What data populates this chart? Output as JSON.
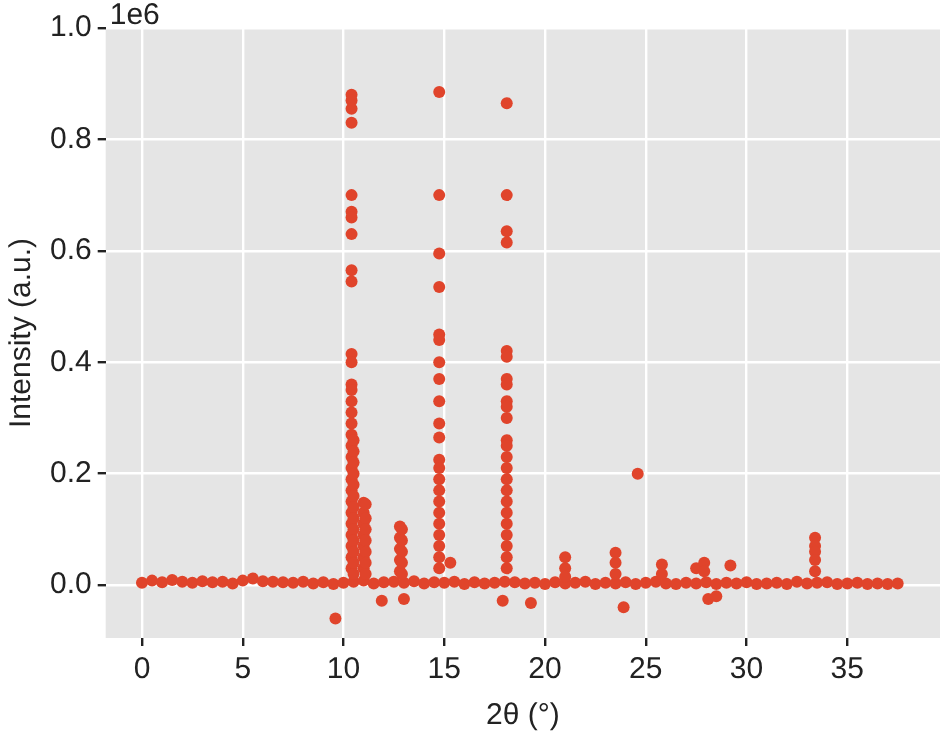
{
  "chart_data": {
    "type": "scatter",
    "xlabel": "2θ (°)",
    "ylabel": "Intensity (a.u.)",
    "annotations": [
      "1e6"
    ],
    "color": "#e0442b",
    "marker": "circle",
    "grid": true,
    "xlim": [
      -1.8,
      39.6
    ],
    "xticks": [
      0,
      5,
      10,
      15,
      20,
      25,
      30,
      35
    ],
    "ylim": [
      -0.095,
      1.0
    ],
    "yticks": [
      {
        "value": 0,
        "label": "0.0"
      },
      {
        "value": 0.2,
        "label": "0.2"
      },
      {
        "value": 0.4,
        "label": "0.4"
      },
      {
        "value": 0.6,
        "label": "0.6"
      },
      {
        "value": 0.8,
        "label": "0.8"
      },
      {
        "value": 1.0,
        "label": "1.0"
      }
    ],
    "x": [
      0,
      0.5,
      1,
      1.5,
      2,
      2.5,
      3,
      3.5,
      4,
      4.5,
      5,
      5.5,
      6,
      6.5,
      7,
      7.5,
      8,
      8.5,
      9,
      9.5,
      10,
      10.5,
      11,
      11.5,
      12,
      12.5,
      13,
      13.5,
      14,
      14.5,
      15,
      15.5,
      16,
      16.5,
      17,
      17.5,
      18,
      18.5,
      19,
      19.5,
      20,
      20.5,
      21,
      21.5,
      22,
      22.5,
      23,
      23.5,
      24,
      24.5,
      25,
      25.5,
      26,
      26.5,
      27,
      27.5,
      28,
      28.5,
      29,
      29.5,
      30,
      30.5,
      31,
      31.5,
      32,
      32.5,
      33,
      33.5,
      34,
      34.5,
      35,
      35.5,
      36,
      36.5,
      37,
      37.5,
      10.4,
      10.4,
      10.4,
      10.4,
      10.4,
      10.4,
      10.4,
      10.4,
      10.4,
      10.4,
      10.4,
      10.4,
      10.4,
      10.4,
      10.4,
      10.4,
      10.4,
      10.4,
      10.4,
      10.4,
      10.4,
      10.4,
      10.4,
      10.4,
      10.4,
      10.4,
      10.4,
      10.4,
      10.4,
      10.4,
      10.5,
      10.5,
      10.5,
      10.5,
      10.5,
      10.5,
      10.5,
      10.5,
      10.5,
      10.5,
      10.5,
      10.5,
      10.5,
      11.0,
      11.0,
      11.0,
      11.0,
      11.0,
      11.0,
      11.0,
      11.1,
      11.1,
      11.1,
      11.1,
      11.1,
      11.1,
      11.1,
      12.8,
      12.8,
      12.8,
      12.8,
      12.8,
      12.9,
      12.9,
      12.9,
      12.9,
      12.9,
      14.75,
      14.75,
      14.75,
      14.75,
      14.75,
      14.75,
      14.75,
      14.75,
      14.75,
      14.75,
      14.75,
      14.75,
      14.75,
      14.75,
      14.75,
      14.75,
      14.75,
      14.75,
      14.75,
      14.75,
      14.75,
      14.75,
      15.3,
      18.1,
      18.1,
      18.1,
      18.1,
      18.1,
      18.1,
      18.1,
      18.1,
      18.1,
      18.1,
      18.1,
      18.1,
      18.1,
      18.1,
      18.1,
      18.1,
      18.1,
      18.1,
      18.1,
      18.1,
      18.1,
      18.1,
      18.1,
      18.1,
      21.0,
      21.0,
      21.0,
      23.5,
      23.5,
      23.5,
      24.6,
      25.8,
      25.8,
      27.5,
      27.9,
      27.9,
      29.2,
      33.4,
      33.4,
      33.4,
      33.4,
      33.4,
      9.6,
      11.9,
      13.0,
      17.9,
      19.3,
      23.9,
      28.1,
      28.5
    ],
    "values": [
      0.004,
      0.008,
      0.005,
      0.009,
      0.006,
      0.004,
      0.007,
      0.005,
      0.006,
      0.003,
      0.008,
      0.012,
      0.007,
      0.006,
      0.005,
      0.004,
      0.006,
      0.003,
      0.005,
      0.002,
      0.004,
      0.006,
      0.008,
      0.003,
      0.005,
      0.006,
      0.004,
      0.007,
      0.003,
      0.005,
      0.004,
      0.006,
      0.002,
      0.005,
      0.003,
      0.004,
      0.006,
      0.005,
      0.003,
      0.004,
      0.002,
      0.005,
      0.003,
      0.004,
      0.006,
      0.002,
      0.004,
      0.003,
      0.005,
      0.002,
      0.004,
      0.006,
      0.003,
      0.002,
      0.004,
      0.003,
      0.005,
      0.002,
      0.004,
      0.003,
      0.005,
      0.002,
      0.003,
      0.004,
      0.002,
      0.006,
      0.003,
      0.004,
      0.005,
      0.002,
      0.003,
      0.004,
      0.002,
      0.003,
      0.002,
      0.003,
      0.88,
      0.87,
      0.855,
      0.83,
      0.7,
      0.67,
      0.66,
      0.63,
      0.565,
      0.545,
      0.415,
      0.4,
      0.36,
      0.35,
      0.33,
      0.31,
      0.29,
      0.27,
      0.25,
      0.23,
      0.21,
      0.19,
      0.17,
      0.15,
      0.13,
      0.11,
      0.09,
      0.07,
      0.05,
      0.03,
      0.26,
      0.24,
      0.22,
      0.2,
      0.18,
      0.16,
      0.14,
      0.12,
      0.1,
      0.08,
      0.06,
      0.04,
      0.02,
      0.148,
      0.13,
      0.11,
      0.09,
      0.07,
      0.05,
      0.03,
      0.145,
      0.12,
      0.1,
      0.08,
      0.06,
      0.04,
      0.02,
      0.105,
      0.085,
      0.065,
      0.045,
      0.025,
      0.1,
      0.08,
      0.06,
      0.04,
      0.02,
      0.885,
      0.7,
      0.595,
      0.535,
      0.45,
      0.44,
      0.4,
      0.37,
      0.33,
      0.29,
      0.265,
      0.225,
      0.21,
      0.19,
      0.17,
      0.15,
      0.13,
      0.11,
      0.09,
      0.07,
      0.05,
      0.03,
      0.04,
      0.865,
      0.7,
      0.635,
      0.615,
      0.42,
      0.41,
      0.37,
      0.36,
      0.33,
      0.32,
      0.3,
      0.26,
      0.25,
      0.23,
      0.21,
      0.19,
      0.17,
      0.15,
      0.13,
      0.11,
      0.09,
      0.07,
      0.05,
      0.03,
      0.05,
      0.03,
      0.015,
      0.058,
      0.04,
      0.02,
      0.2,
      0.037,
      0.02,
      0.03,
      0.04,
      0.025,
      0.035,
      0.085,
      0.07,
      0.06,
      0.045,
      0.025,
      -0.06,
      -0.028,
      -0.025,
      -0.028,
      -0.032,
      -0.04,
      -0.025,
      -0.02
    ]
  }
}
